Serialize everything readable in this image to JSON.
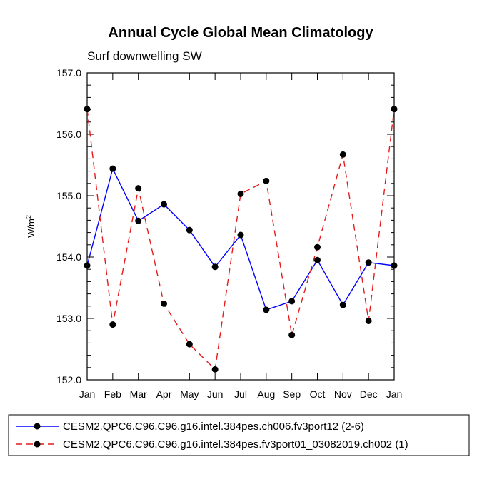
{
  "chart_data": {
    "type": "line",
    "title": "Annual Cycle Global Mean Climatology",
    "subtitle": "Surf downwelling SW",
    "ylabel_base": "W/m",
    "ylabel_sup": "2",
    "categories": [
      "Jan",
      "Feb",
      "Mar",
      "Apr",
      "May",
      "Jun",
      "Jul",
      "Aug",
      "Sep",
      "Oct",
      "Nov",
      "Dec",
      "Jan"
    ],
    "ylim": [
      152.0,
      157.0
    ],
    "yticks": [
      "152.0",
      "153.0",
      "154.0",
      "155.0",
      "156.0",
      "157.0"
    ],
    "grid": false,
    "legend_position": "bottom",
    "series": [
      {
        "name": "CESM2.QPC6.C96.C96.g16.intel.384pes.ch006.fv3port12 (2-6)",
        "color": "#0000ff",
        "dash": "solid",
        "values": [
          153.86,
          155.44,
          154.59,
          154.86,
          154.44,
          153.84,
          154.36,
          153.14,
          153.28,
          153.95,
          153.22,
          153.91,
          153.86
        ]
      },
      {
        "name": "CESM2.QPC6.C96.C96.g16.intel.384pes.fv3port01_03082019.ch002 (1)",
        "color": "#e41a1c",
        "dash": "dashed",
        "values": [
          156.41,
          152.9,
          155.12,
          153.24,
          152.58,
          152.17,
          155.03,
          155.24,
          152.73,
          154.16,
          155.67,
          152.96,
          156.41
        ]
      }
    ]
  }
}
